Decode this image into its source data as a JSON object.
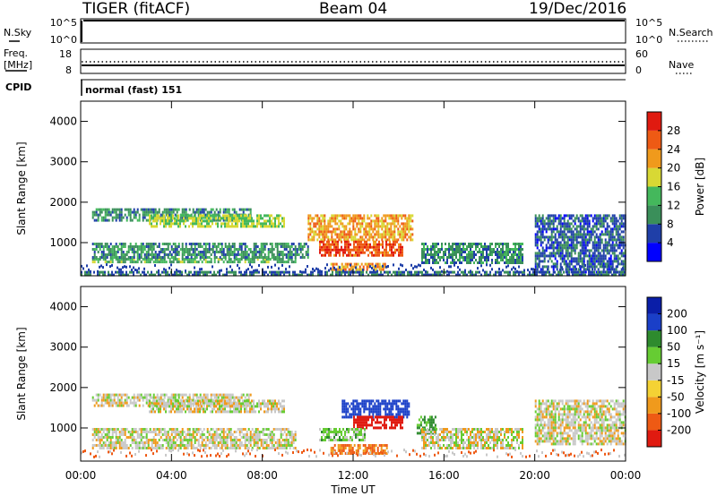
{
  "header": {
    "station": "TIGER (fitACF)",
    "beam": "Beam 04",
    "date": "19/Dec/2016"
  },
  "strips": {
    "nsky": {
      "label": "N.Sky",
      "ticks": [
        "10^5",
        "10^0"
      ]
    },
    "nsearch": {
      "label": "N.Search",
      "ticks": [
        "10^5",
        "10^0"
      ]
    },
    "freq": {
      "label_line1": "Freq.",
      "label_line2": "[MHz]",
      "ticks": [
        "18",
        "8"
      ]
    },
    "nave": {
      "label": "Nave",
      "ticks": [
        "60",
        "0"
      ]
    },
    "cpid": {
      "label": "CPID",
      "value": "normal (fast) 151"
    }
  },
  "colors": {
    "power_scale": [
      "#0000ff",
      "#1f3fa8",
      "#3a8f5a",
      "#44b85c",
      "#d8d834",
      "#f09a1c",
      "#ee5a14",
      "#e01a10"
    ],
    "velocity_scale": [
      "#e01a10",
      "#ee5a14",
      "#f09a1c",
      "#f4d234",
      "#c8c8c8",
      "#66cc33",
      "#2e8b2e",
      "#1a3fc8",
      "#0a1ea8"
    ]
  },
  "chart_data": [
    {
      "type": "heatmap",
      "title": "Power",
      "xlabel": "Time UT",
      "ylabel": "Slant Range [km]",
      "xlim": [
        "00:00",
        "24:00"
      ],
      "ylim": [
        180,
        4500
      ],
      "x_tick_labels": [
        "00:00",
        "04:00",
        "08:00",
        "12:00",
        "16:00",
        "20:00",
        "00:00"
      ],
      "y_ticks": [
        1000,
        2000,
        3000,
        4000
      ],
      "colorbar": {
        "label": "Power [dB]",
        "range": [
          0,
          32
        ],
        "tick_values": [
          4,
          8,
          12,
          16,
          20,
          24,
          28
        ],
        "tick_labels": [
          "4",
          "8",
          "12",
          "16",
          "20",
          "24",
          "28"
        ]
      },
      "regions": [
        {
          "t": [
            0.5,
            9.5
          ],
          "r": [
            500,
            620
          ],
          "power": 13
        },
        {
          "t": [
            0.5,
            10
          ],
          "r": [
            650,
            1000
          ],
          "power": 10
        },
        {
          "t": [
            0.5,
            7.5
          ],
          "r": [
            1550,
            1850
          ],
          "power": 10
        },
        {
          "t": [
            3,
            9
          ],
          "r": [
            1400,
            1700
          ],
          "power": 16
        },
        {
          "t": [
            10,
            14.6
          ],
          "r": [
            1100,
            1700
          ],
          "power": 22
        },
        {
          "t": [
            10.5,
            14.2
          ],
          "r": [
            700,
            1050
          ],
          "power": 27
        },
        {
          "t": [
            11,
            13.5
          ],
          "r": [
            350,
            500
          ],
          "power": 22
        },
        {
          "t": [
            15,
            19.5
          ],
          "r": [
            500,
            1000
          ],
          "power": 10
        },
        {
          "t": [
            20,
            24
          ],
          "r": [
            300,
            1700
          ],
          "power": 7
        },
        {
          "t": [
            0,
            24
          ],
          "r": [
            180,
            300
          ],
          "power": 8
        }
      ]
    },
    {
      "type": "heatmap",
      "title": "Velocity",
      "xlabel": "Time UT",
      "ylabel": "Slant Range [km]",
      "xlim": [
        "00:00",
        "24:00"
      ],
      "ylim": [
        180,
        4500
      ],
      "x_tick_labels": [
        "00:00",
        "04:00",
        "08:00",
        "12:00",
        "16:00",
        "20:00",
        "00:00"
      ],
      "y_ticks": [
        1000,
        2000,
        3000,
        4000
      ],
      "colorbar": {
        "label": "Velocity [m s⁻¹]",
        "range": [
          -250,
          250
        ],
        "tick_values": [
          -200,
          -100,
          -50,
          -15,
          15,
          50,
          100,
          200
        ],
        "tick_labels": [
          "-200",
          "-100",
          "-50",
          "-15",
          "15",
          "50",
          "100",
          "200"
        ]
      },
      "regions": [
        {
          "t": [
            0.5,
            9.5
          ],
          "r": [
            500,
            1000
          ],
          "velocity": 0
        },
        {
          "t": [
            0.5,
            7.5
          ],
          "r": [
            1550,
            1850
          ],
          "velocity": 0
        },
        {
          "t": [
            3,
            9
          ],
          "r": [
            1400,
            1700
          ],
          "velocity": 0
        },
        {
          "t": [
            11.5,
            14.5
          ],
          "r": [
            1300,
            1700
          ],
          "velocity": 200
        },
        {
          "t": [
            12,
            14.2
          ],
          "r": [
            1000,
            1300
          ],
          "velocity": -200
        },
        {
          "t": [
            10.5,
            12.5
          ],
          "r": [
            700,
            1000
          ],
          "velocity": 30
        },
        {
          "t": [
            11,
            13.5
          ],
          "r": [
            350,
            600
          ],
          "velocity": -60
        },
        {
          "t": [
            14.8,
            15.6
          ],
          "r": [
            900,
            1300
          ],
          "velocity": 60
        },
        {
          "t": [
            15,
            19.5
          ],
          "r": [
            500,
            1000
          ],
          "velocity": 0
        },
        {
          "t": [
            20,
            24
          ],
          "r": [
            600,
            1700
          ],
          "velocity": 0
        }
      ]
    }
  ]
}
